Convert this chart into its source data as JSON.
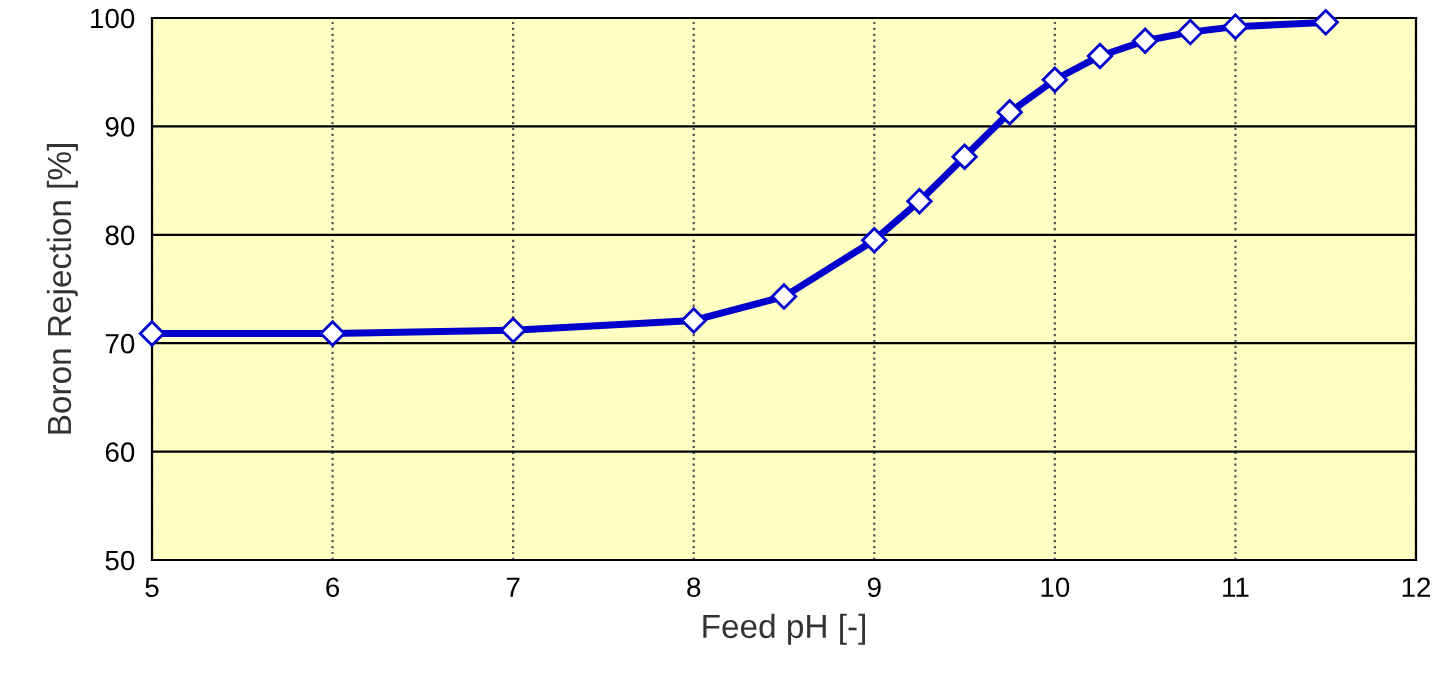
{
  "chart_data": {
    "type": "line",
    "xlabel": "Feed pH [-]",
    "ylabel": "Boron Rejection [%]",
    "x": [
      5,
      6,
      7,
      8,
      8.5,
      9,
      9.25,
      9.5,
      9.75,
      10,
      10.25,
      10.5,
      10.75,
      11,
      11.5
    ],
    "series": [
      {
        "color": "#0000cc",
        "values": [
          70.9,
          70.9,
          71.2,
          72.1,
          74.3,
          79.5,
          83.1,
          87.2,
          91.3,
          94.3,
          96.5,
          97.9,
          98.7,
          99.2,
          99.6
        ]
      }
    ],
    "xlim": [
      5,
      12
    ],
    "xticks": [
      5,
      6,
      7,
      8,
      9,
      10,
      11,
      12
    ],
    "ylim": [
      50,
      100
    ],
    "yticks": [
      50,
      60,
      70,
      80,
      90,
      100
    ],
    "grid": true,
    "marker": "diamond",
    "line_style": "solid"
  }
}
